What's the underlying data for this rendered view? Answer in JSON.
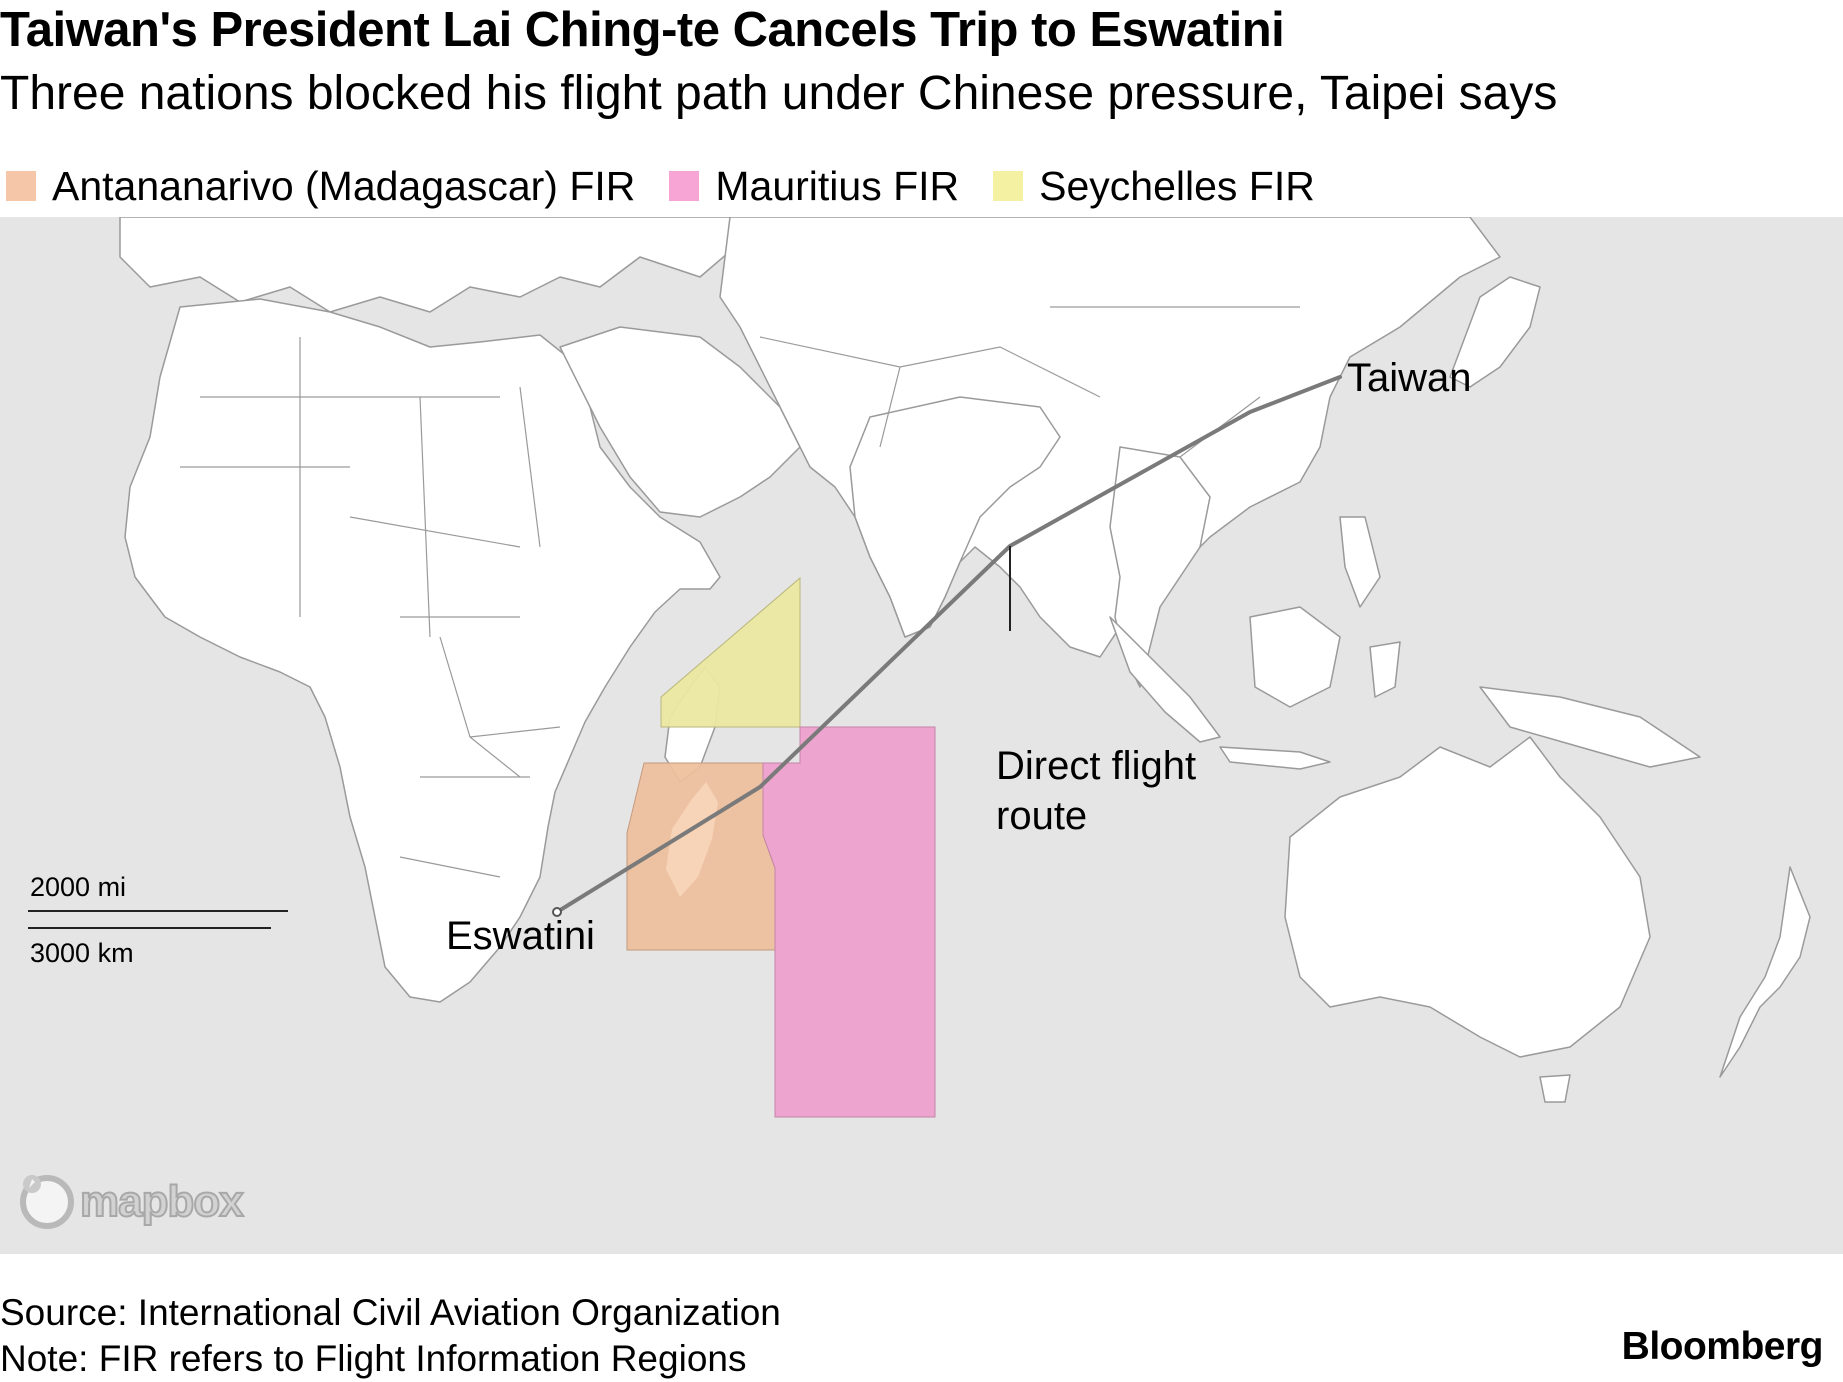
{
  "header": {
    "title": "Taiwan's President Lai Ching-te Cancels Trip to Eswatini",
    "subtitle": "Three nations blocked his flight path under Chinese pressure, Taipei says"
  },
  "legend": [
    {
      "label": "Antananarivo (Madagascar) FIR",
      "color": "#f5c7a8"
    },
    {
      "label": "Mauritius FIR",
      "color": "#f6a5d5"
    },
    {
      "label": "Seychelles FIR",
      "color": "#f5f1a2"
    }
  ],
  "map": {
    "labels": {
      "taiwan": "Taiwan",
      "eswatini": "Eswatini",
      "route_line1": "Direct flight",
      "route_line2": "route"
    },
    "scale": {
      "miles": "2000 mi",
      "km": "3000 km"
    },
    "attribution": "mapbox",
    "colors": {
      "water": "#e5e5e6",
      "land": "#ffffff",
      "border": "#9a9a9a",
      "route": "#7a7a7a",
      "madagascar_fir": "#eebf9c",
      "mauritius_fir": "#eda0cc",
      "seychelles_fir": "#ebe8a2"
    }
  },
  "footer": {
    "source": "Source: International Civil Aviation Organization",
    "note": "Note: FIR refers to Flight Information Regions",
    "brand": "Bloomberg"
  }
}
